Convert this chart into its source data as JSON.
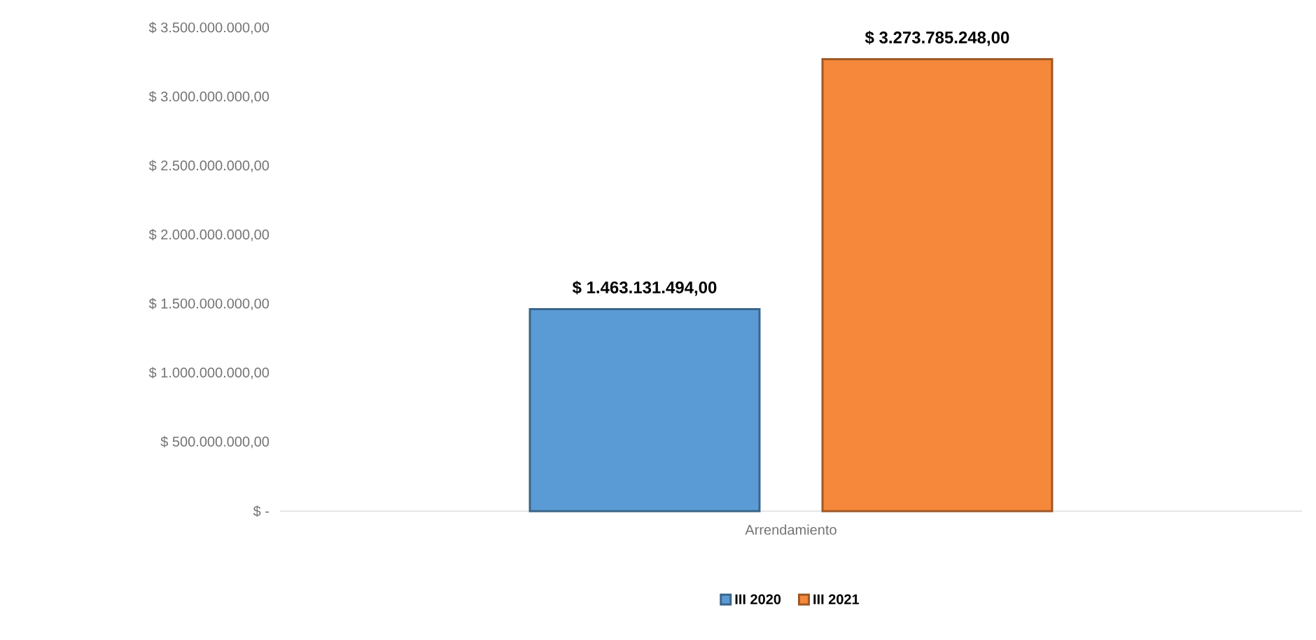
{
  "chart_data": {
    "type": "bar",
    "categories": [
      "Arrendamiento"
    ],
    "series": [
      {
        "name": "III 2020",
        "color": "#5b9bd5",
        "values": [
          1463131494
        ],
        "value_labels": [
          "$ 1.463.131.494,00"
        ]
      },
      {
        "name": "III 2021",
        "color": "#f5883a",
        "values": [
          3273785248
        ],
        "value_labels": [
          "$ 3.273.785.248,00"
        ]
      }
    ],
    "ylim": [
      0,
      3500000000
    ],
    "yticks": [
      {
        "value": 0,
        "label": "$ -"
      },
      {
        "value": 500000000,
        "label": "$ 500.000.000,00"
      },
      {
        "value": 1000000000,
        "label": "$ 1.000.000.000,00"
      },
      {
        "value": 1500000000,
        "label": "$ 1.500.000.000,00"
      },
      {
        "value": 2000000000,
        "label": "$ 2.000.000.000,00"
      },
      {
        "value": 2500000000,
        "label": "$ 2.500.000.000,00"
      },
      {
        "value": 3000000000,
        "label": "$ 3.000.000.000,00"
      },
      {
        "value": 3500000000,
        "label": "$ 3.500.000.000,00"
      }
    ],
    "legend": "bottom"
  }
}
